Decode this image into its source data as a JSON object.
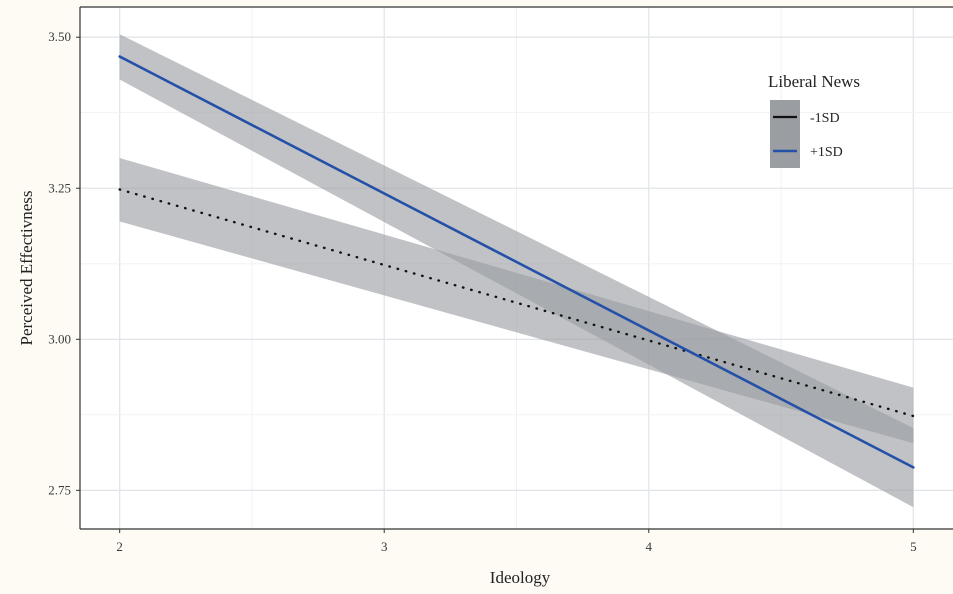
{
  "chart_data": {
    "type": "line",
    "xlabel": "Ideology",
    "ylabel": "Perceived Effectivness",
    "xlim": [
      1.85,
      5.15
    ],
    "ylim": [
      2.686,
      3.55
    ],
    "x_ticks": [
      2,
      3,
      4,
      5
    ],
    "y_ticks": [
      2.75,
      3.0,
      3.25,
      3.5
    ],
    "x_tick_labels": [
      "2",
      "3",
      "4",
      "5"
    ],
    "y_tick_labels": [
      "2.75",
      "3.00",
      "3.25",
      "3.50"
    ],
    "grid": true,
    "legend": {
      "title": "Liberal News",
      "position": "top-right",
      "entries": [
        "-1SD",
        "+1SD"
      ]
    },
    "series": [
      {
        "name": "-1SD",
        "color": "#111111",
        "line_style": "dotted",
        "x": [
          2,
          5
        ],
        "y": [
          3.248,
          2.873
        ],
        "ci_lower": [
          3.195,
          2.828
        ],
        "ci_upper": [
          3.3,
          2.92
        ]
      },
      {
        "name": "+1SD",
        "color": "#2450a8",
        "line_style": "solid",
        "x": [
          2,
          5
        ],
        "y": [
          3.468,
          2.788
        ],
        "ci_lower": [
          3.43,
          2.722
        ],
        "ci_upper": [
          3.505,
          2.853
        ]
      }
    ],
    "ribbon_color": "#9a9da1"
  }
}
